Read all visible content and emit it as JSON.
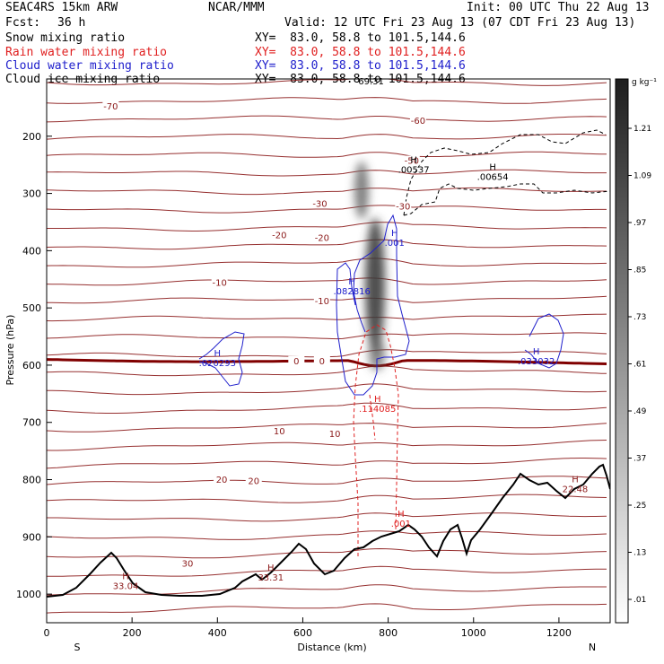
{
  "header": {
    "model": "SEAC4RS 15km ARW",
    "org": "NCAR/MMM",
    "init": "Init: 00 UTC Thu 22 Aug 13",
    "fcst_label": "Fcst:",
    "fcst_value": "36 h",
    "valid": "Valid: 12 UTC Fri 23 Aug 13 (07 CDT Fri 23 Aug 13)"
  },
  "fields": [
    {
      "name": "Snow mixing ratio",
      "xy": "XY=  83.0, 58.8 to 101.5,144.6",
      "color": "#000000"
    },
    {
      "name": "Rain water mixing ratio",
      "xy": "XY=  83.0, 58.8 to 101.5,144.6",
      "color": "#e02020"
    },
    {
      "name": "Cloud water mixing ratio",
      "xy": "XY=  83.0, 58.8 to 101.5,144.6",
      "color": "#2020cc"
    },
    {
      "name": "Cloud ice mixing ratio",
      "xy": "XY=  83.0, 58.8 to 101.5,144.6",
      "color": "#000000"
    }
  ],
  "colors": {
    "temperature": "#8b1a1a",
    "zero_isotherm": "#800000",
    "rain": "#e02020",
    "cloud": "#2020cc",
    "ice": "#000000",
    "terrain": "#000000"
  },
  "chart_data": {
    "type": "cross-section",
    "xlabel": "Distance (km)",
    "ylabel": "Pressure (hPa)",
    "xlim": [
      0,
      1320
    ],
    "ylim": [
      1050,
      100
    ],
    "x_ticks": [
      0,
      200,
      400,
      600,
      800,
      1000,
      1200
    ],
    "y_ticks": [
      200,
      300,
      400,
      500,
      600,
      700,
      800,
      900,
      1000
    ],
    "x_tick_labels": [
      "0",
      "200",
      "400",
      "600",
      "800",
      "1000",
      "1200"
    ],
    "y_tick_labels": [
      "200",
      "300",
      "400",
      "500",
      "600",
      "700",
      "800",
      "900",
      "1000"
    ],
    "ends": {
      "left": "S",
      "right": "N"
    },
    "colorbar": {
      "unit": "g kg⁻¹",
      "labels": [
        "1.21",
        "1.09",
        ".97",
        ".85",
        ".73",
        ".61",
        ".49",
        ".37",
        ".25",
        ".13",
        ".01"
      ]
    },
    "temperature_contour_labels": [
      {
        "text": "-70",
        "x": 150,
        "p": 150
      },
      {
        "text": "-60",
        "x": 870,
        "p": 175
      },
      {
        "text": "-50",
        "x": 855,
        "p": 245
      },
      {
        "text": "-30",
        "x": 640,
        "p": 320
      },
      {
        "text": "-30",
        "x": 835,
        "p": 325
      },
      {
        "text": "-20",
        "x": 545,
        "p": 375
      },
      {
        "text": "-20",
        "x": 645,
        "p": 380
      },
      {
        "text": "-10",
        "x": 405,
        "p": 458
      },
      {
        "text": "-10",
        "x": 645,
        "p": 490
      },
      {
        "text": "0",
        "x": 585,
        "p": 595
      },
      {
        "text": "0",
        "x": 645,
        "p": 595
      },
      {
        "text": "10",
        "x": 545,
        "p": 718
      },
      {
        "text": "10",
        "x": 675,
        "p": 722
      },
      {
        "text": "20",
        "x": 410,
        "p": 802
      },
      {
        "text": "20",
        "x": 485,
        "p": 805
      },
      {
        "text": "30",
        "x": 330,
        "p": 949
      }
    ],
    "extrema": [
      {
        "mark": "H",
        "value": "33.04",
        "x": 185,
        "p": 990,
        "color": "#8b1a1a"
      },
      {
        "mark": "H",
        "value": "33.31",
        "x": 525,
        "p": 975,
        "color": "#8b1a1a"
      },
      {
        "mark": "H",
        "value": "22.48",
        "x": 1238,
        "p": 820,
        "color": "#8b1a1a"
      },
      {
        "mark": "H",
        "value": ".001",
        "x": 830,
        "p": 881,
        "color": "#e02020"
      },
      {
        "mark": "H",
        "value": ".114085",
        "x": 775,
        "p": 680,
        "color": "#e02020"
      },
      {
        "mark": "H",
        "value": ".082816",
        "x": 715,
        "p": 475,
        "color": "#2020cc"
      },
      {
        "mark": "H",
        "value": ".001",
        "x": 815,
        "p": 390,
        "color": "#2020cc"
      },
      {
        "mark": "H",
        "value": ".020293",
        "x": 400,
        "p": 600,
        "color": "#2020cc"
      },
      {
        "mark": "H",
        "value": ".033032",
        "x": 1147,
        "p": 597,
        "color": "#2020cc"
      },
      {
        "mark": "H",
        "value": ".00537",
        "x": 860,
        "p": 262,
        "color": "#000000"
      },
      {
        "mark": "H",
        "value": ".00654",
        "x": 1045,
        "p": 275,
        "color": "#000000"
      },
      {
        "mark": "",
        "value": "69.31",
        "x": 760,
        "p": 108,
        "color": "#000000"
      }
    ]
  }
}
